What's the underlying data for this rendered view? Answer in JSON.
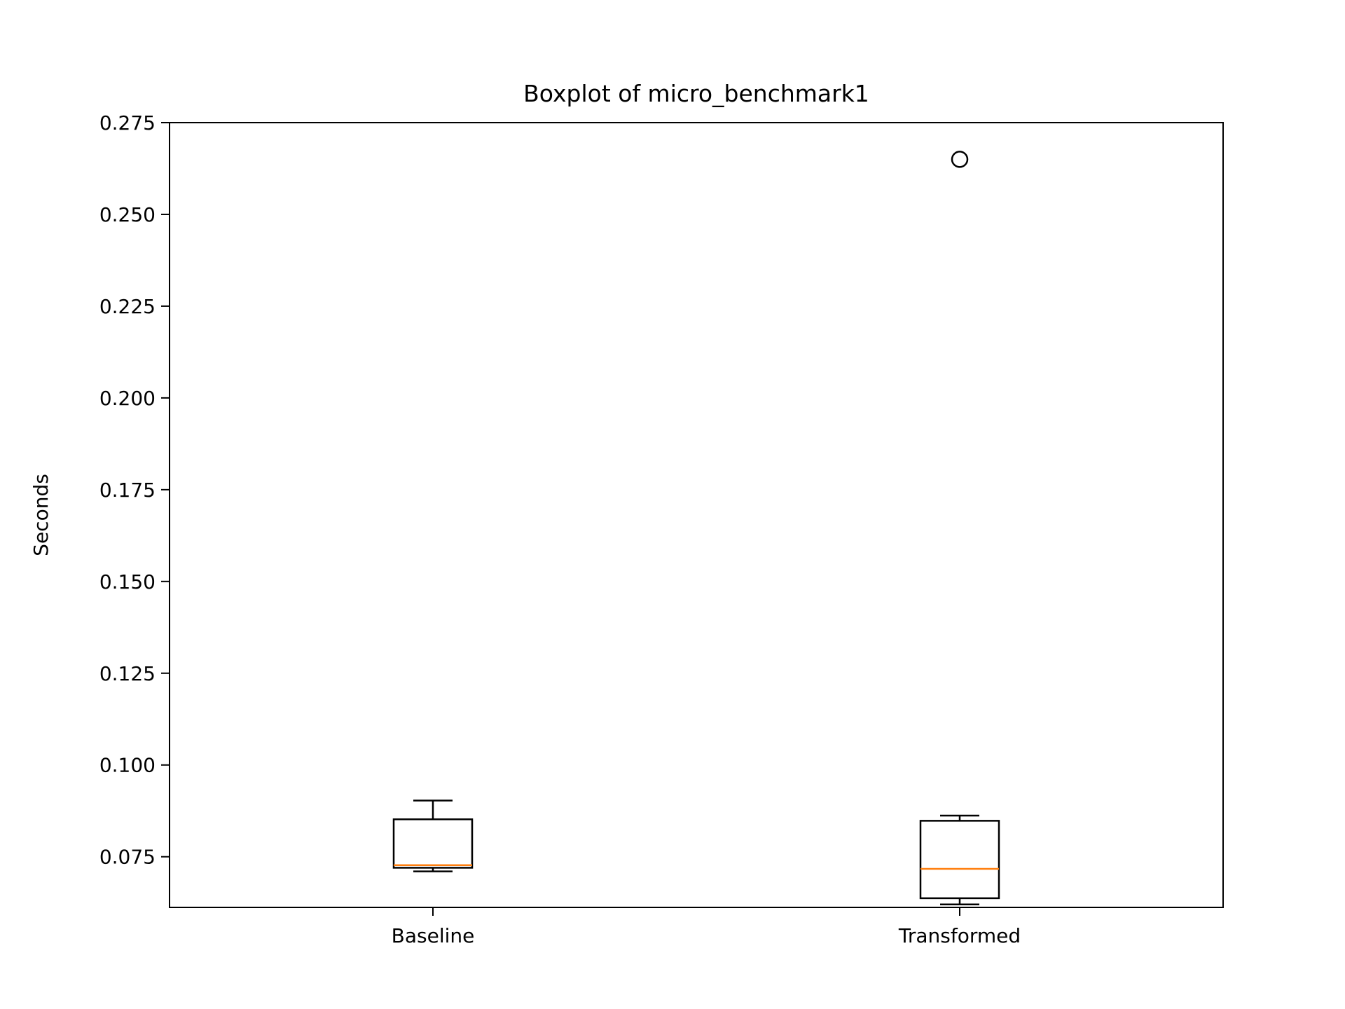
{
  "chart_data": {
    "type": "box",
    "title": "Boxplot of micro_benchmark1",
    "xlabel": "",
    "ylabel": "Seconds",
    "categories": [
      "Baseline",
      "Transformed"
    ],
    "ylim": [
      0.0612,
      0.275
    ],
    "yticks": [
      "0.075",
      "0.100",
      "0.125",
      "0.150",
      "0.175",
      "0.200",
      "0.225",
      "0.250",
      "0.275"
    ],
    "boxes": [
      {
        "name": "Baseline",
        "whisker_low": 0.071,
        "q1": 0.072,
        "median": 0.0727,
        "q3": 0.0852,
        "whisker_high": 0.0903,
        "outliers": []
      },
      {
        "name": "Transformed",
        "whisker_low": 0.062,
        "q1": 0.0637,
        "median": 0.0717,
        "q3": 0.0848,
        "whisker_high": 0.0862,
        "outliers": [
          0.265
        ]
      }
    ],
    "grid": false,
    "colors": {
      "box": "#000000",
      "median": "#ff7f0e",
      "outlier": "#000000"
    }
  }
}
